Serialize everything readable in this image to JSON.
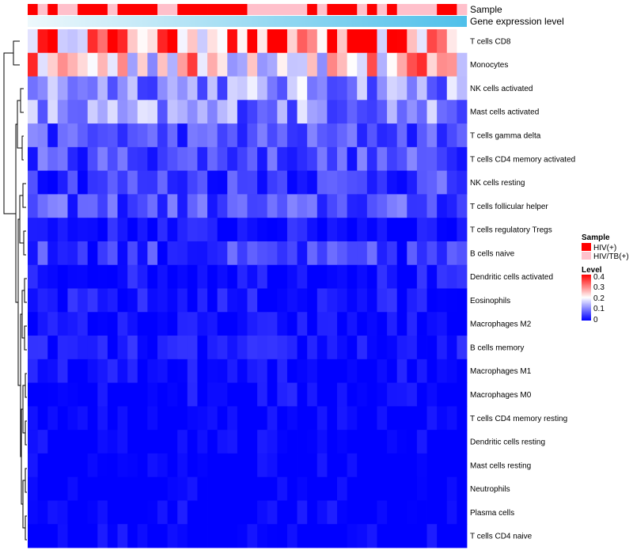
{
  "chart_data": {
    "type": "heatmap",
    "rows": [
      "T cells CD8",
      "Monocytes",
      "NK cells activated",
      "Mast cells activated",
      "T cells gamma delta",
      "T cells CD4 memory activated",
      "NK cells resting",
      "T cells follicular helper",
      "T cells regulatory  Tregs",
      "B cells naive",
      "Dendritic cells activated",
      "Eosinophils",
      "Macrophages M2",
      "B cells memory",
      "Macrophages M1",
      "Macrophages M0",
      "T cells CD4 memory resting",
      "Dendritic cells resting",
      "Mast cells resting",
      "Neutrophils",
      "Plasma cells",
      "T cells CD4 naive"
    ],
    "row_means": [
      0.29,
      0.23,
      0.12,
      0.11,
      0.06,
      0.06,
      0.05,
      0.06,
      0.03,
      0.04,
      0.03,
      0.03,
      0.02,
      0.03,
      0.02,
      0.02,
      0.01,
      0.01,
      0.005,
      0.003,
      0.01,
      0.01
    ],
    "column_count": 44,
    "column_samples": [
      "HIV(+)",
      "HIV/TB(+)",
      "HIV(+)",
      "HIV/TB(+)",
      "HIV/TB(+)",
      "HIV(+)",
      "HIV(+)",
      "HIV(+)",
      "HIV/TB(+)",
      "HIV(+)",
      "HIV(+)",
      "HIV(+)",
      "HIV(+)",
      "HIV/TB(+)",
      "HIV/TB(+)",
      "HIV(+)",
      "HIV(+)",
      "HIV(+)",
      "HIV(+)",
      "HIV(+)",
      "HIV(+)",
      "HIV(+)",
      "HIV/TB(+)",
      "HIV/TB(+)",
      "HIV/TB(+)",
      "HIV/TB(+)",
      "HIV/TB(+)",
      "HIV/TB(+)",
      "HIV(+)",
      "HIV/TB(+)",
      "HIV(+)",
      "HIV(+)",
      "HIV(+)",
      "HIV/TB(+)",
      "HIV(+)",
      "HIV/TB(+)",
      "HIV(+)",
      "HIV/TB(+)",
      "HIV/TB(+)",
      "HIV/TB(+)",
      "HIV/TB(+)",
      "HIV(+)",
      "HIV(+)",
      "HIV/TB(+)"
    ],
    "annotations": {
      "sample_title": "Sample",
      "expression_title": "Gene expression level"
    },
    "legend_sample": {
      "title": "Sample",
      "items": [
        {
          "label": "HIV(+)",
          "color": "#ff0000"
        },
        {
          "label": "HIV/TB(+)",
          "color": "#ffc0cb"
        }
      ]
    },
    "legend_level": {
      "title": "Level",
      "ticks": [
        "0.4",
        "0.3",
        "0.2",
        "0.1",
        "0"
      ],
      "range": [
        0,
        0.4
      ]
    },
    "colors": {
      "low": "#0000ff",
      "mid": "#ffffff",
      "high": "#ff0000",
      "expr_light": "#e6f4fb",
      "expr_dark": "#4fc0ea"
    }
  }
}
